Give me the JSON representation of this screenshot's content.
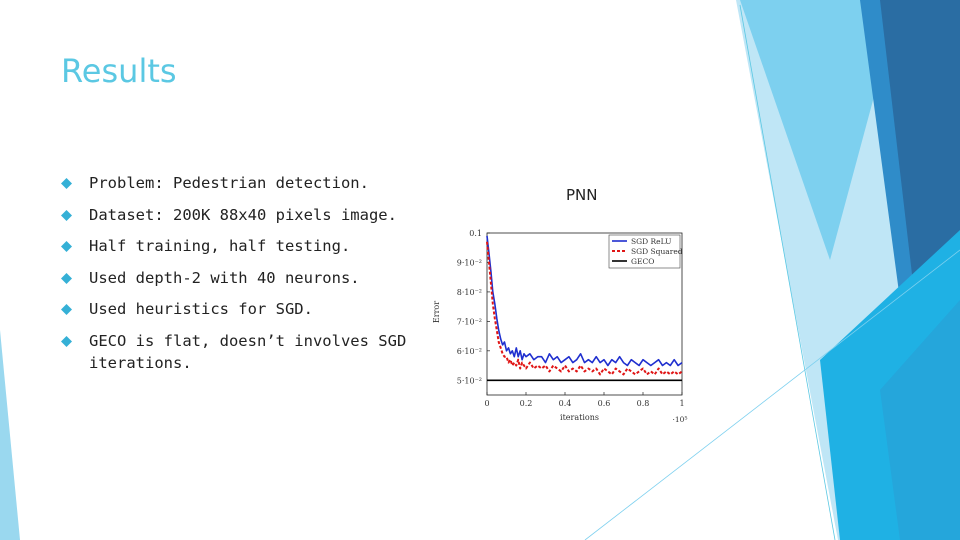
{
  "slide": {
    "title": "Results",
    "bullets": [
      "Problem: Pedestrian detection.",
      "Dataset: 200K 88x40 pixels image.",
      "Half training, half testing.",
      "Used depth-2 with 40 neurons.",
      "Used heuristics for SGD.",
      "GECO is flat, doesn’t involves SGD iterations."
    ],
    "figure_caption": "PNN"
  },
  "colors": {
    "title": "#5bc8e3",
    "bullet_marker": "#35b0d6",
    "sgd_relu": "#1f2fcf",
    "sgd_squared": "#e01515",
    "geco": "#000000"
  },
  "chart_data": {
    "type": "line",
    "title": "",
    "xlabel": "iterations",
    "ylabel": "Error",
    "x_multiplier_label": "·10⁵",
    "xlim": [
      0,
      1
    ],
    "ylim": [
      0.045,
      0.1
    ],
    "x_ticks": [
      0,
      0.2,
      0.4,
      0.6,
      0.8,
      1
    ],
    "x_tick_labels": [
      "0",
      "0.2",
      "0.4",
      "0.6",
      "0.8",
      "1"
    ],
    "y_ticks": [
      0.05,
      0.06,
      0.07,
      0.08,
      0.09,
      0.1
    ],
    "y_tick_labels": [
      "5·10⁻²",
      "6·10⁻²",
      "7·10⁻²",
      "8·10⁻²",
      "9·10⁻²",
      "0.1"
    ],
    "legend_position": "top-right",
    "series": [
      {
        "name": "SGD ReLU",
        "style": "solid",
        "x": [
          0.0,
          0.01,
          0.02,
          0.03,
          0.04,
          0.05,
          0.06,
          0.07,
          0.08,
          0.09,
          0.1,
          0.11,
          0.12,
          0.13,
          0.14,
          0.15,
          0.16,
          0.17,
          0.18,
          0.19,
          0.2,
          0.22,
          0.24,
          0.26,
          0.28,
          0.3,
          0.32,
          0.34,
          0.36,
          0.38,
          0.4,
          0.42,
          0.44,
          0.46,
          0.48,
          0.5,
          0.52,
          0.54,
          0.56,
          0.58,
          0.6,
          0.62,
          0.64,
          0.66,
          0.68,
          0.7,
          0.72,
          0.74,
          0.76,
          0.78,
          0.8,
          0.82,
          0.84,
          0.86,
          0.88,
          0.9,
          0.92,
          0.94,
          0.96,
          0.98,
          1.0
        ],
        "values": [
          0.099,
          0.093,
          0.087,
          0.08,
          0.076,
          0.071,
          0.067,
          0.064,
          0.062,
          0.063,
          0.06,
          0.061,
          0.059,
          0.06,
          0.058,
          0.061,
          0.058,
          0.06,
          0.057,
          0.059,
          0.058,
          0.059,
          0.057,
          0.058,
          0.058,
          0.056,
          0.059,
          0.057,
          0.058,
          0.056,
          0.057,
          0.058,
          0.056,
          0.057,
          0.059,
          0.056,
          0.057,
          0.056,
          0.058,
          0.056,
          0.057,
          0.055,
          0.057,
          0.056,
          0.058,
          0.056,
          0.055,
          0.057,
          0.056,
          0.055,
          0.057,
          0.056,
          0.055,
          0.056,
          0.057,
          0.055,
          0.056,
          0.055,
          0.057,
          0.055,
          0.056
        ]
      },
      {
        "name": "SGD Squared",
        "style": "dashed",
        "x": [
          0.0,
          0.01,
          0.02,
          0.03,
          0.04,
          0.05,
          0.06,
          0.07,
          0.08,
          0.09,
          0.1,
          0.11,
          0.12,
          0.13,
          0.14,
          0.15,
          0.16,
          0.17,
          0.18,
          0.19,
          0.2,
          0.22,
          0.24,
          0.26,
          0.28,
          0.3,
          0.32,
          0.34,
          0.36,
          0.38,
          0.4,
          0.42,
          0.44,
          0.46,
          0.48,
          0.5,
          0.52,
          0.54,
          0.56,
          0.58,
          0.6,
          0.62,
          0.64,
          0.66,
          0.68,
          0.7,
          0.72,
          0.74,
          0.76,
          0.78,
          0.8,
          0.82,
          0.84,
          0.86,
          0.88,
          0.9,
          0.92,
          0.94,
          0.96,
          0.98,
          1.0
        ],
        "values": [
          0.097,
          0.09,
          0.083,
          0.076,
          0.071,
          0.067,
          0.063,
          0.061,
          0.059,
          0.058,
          0.058,
          0.056,
          0.057,
          0.055,
          0.056,
          0.055,
          0.057,
          0.054,
          0.056,
          0.055,
          0.054,
          0.056,
          0.054,
          0.055,
          0.054,
          0.055,
          0.053,
          0.055,
          0.054,
          0.053,
          0.055,
          0.053,
          0.054,
          0.053,
          0.055,
          0.053,
          0.054,
          0.053,
          0.054,
          0.052,
          0.054,
          0.053,
          0.052,
          0.054,
          0.053,
          0.052,
          0.054,
          0.053,
          0.052,
          0.053,
          0.054,
          0.052,
          0.053,
          0.052,
          0.054,
          0.052,
          0.053,
          0.052,
          0.053,
          0.052,
          0.053
        ]
      },
      {
        "name": "GECO",
        "style": "solid",
        "x": [
          0.0,
          1.0
        ],
        "values": [
          0.05,
          0.05
        ]
      }
    ]
  }
}
